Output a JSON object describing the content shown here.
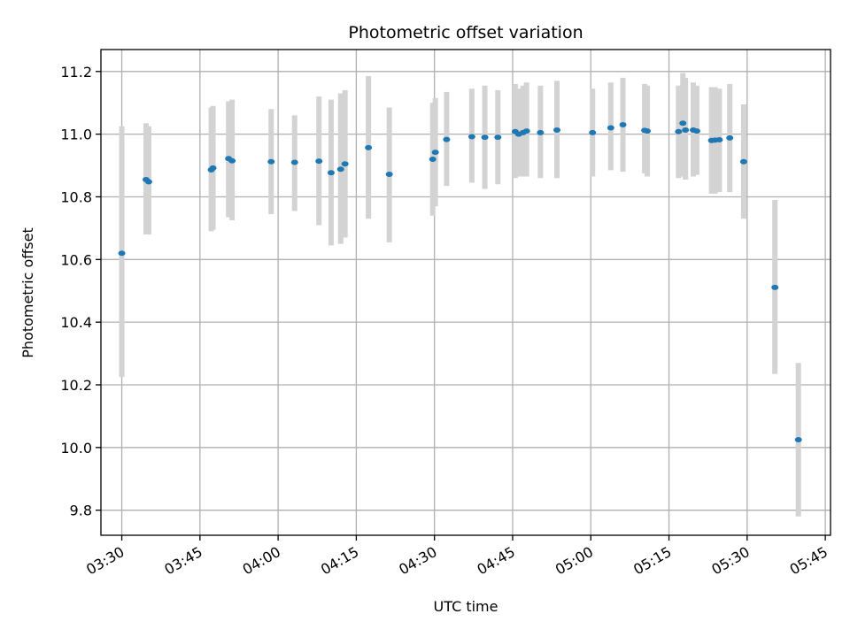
{
  "chart_data": {
    "type": "scatter",
    "title": "Photometric offset variation",
    "xlabel": "UTC time",
    "ylabel": "Photometric offset",
    "xlim": [
      "03:26",
      "05:46"
    ],
    "ylim": [
      9.72,
      11.27
    ],
    "x_ticks": [
      "03:30",
      "03:45",
      "04:00",
      "04:15",
      "04:30",
      "04:45",
      "05:00",
      "05:15",
      "05:30",
      "05:45"
    ],
    "y_ticks": [
      "9.8",
      "10.0",
      "10.2",
      "10.4",
      "10.6",
      "10.8",
      "11.0",
      "11.2"
    ],
    "grid": true,
    "colors": {
      "point": "#1f77b4",
      "errorbar": "#d3d3d3",
      "grid": "#b0b0b0"
    },
    "series": [
      {
        "x": [
          "03:30:00",
          "03:34:40",
          "03:35:10",
          "03:47:10",
          "03:47:30",
          "03:50:30",
          "03:51:10",
          "03:58:40",
          "04:03:10",
          "04:07:50",
          "04:10:10",
          "04:12:00",
          "04:12:50",
          "04:17:20",
          "04:21:20",
          "04:29:40",
          "04:30:10",
          "04:32:20",
          "04:37:10",
          "04:39:40",
          "04:42:10",
          "04:45:30",
          "04:46:10",
          "04:47:00",
          "04:47:40",
          "04:50:20",
          "04:53:30",
          "05:00:20",
          "05:03:50",
          "05:06:10",
          "05:10:20",
          "05:10:50",
          "05:16:50",
          "05:17:40",
          "05:18:10",
          "05:19:40",
          "05:20:20",
          "05:23:10",
          "05:23:50",
          "05:24:40",
          "05:26:40",
          "05:29:20",
          "05:35:20",
          "05:39:50"
        ],
        "y": [
          10.62,
          10.855,
          10.848,
          10.886,
          10.892,
          10.922,
          10.915,
          10.912,
          10.91,
          10.914,
          10.877,
          10.888,
          10.905,
          10.957,
          10.872,
          10.92,
          10.942,
          10.983,
          10.992,
          10.99,
          10.99,
          11.008,
          11.0,
          11.005,
          11.01,
          11.005,
          11.013,
          11.005,
          11.02,
          11.03,
          11.012,
          11.01,
          11.008,
          11.035,
          11.013,
          11.013,
          11.01,
          10.98,
          10.981,
          10.982,
          10.988,
          10.912,
          10.511,
          10.025
        ],
        "err_low": [
          10.225,
          10.68,
          10.68,
          10.69,
          10.695,
          10.735,
          10.725,
          10.745,
          10.755,
          10.71,
          10.645,
          10.65,
          10.67,
          10.73,
          10.655,
          10.74,
          10.77,
          10.835,
          10.845,
          10.825,
          10.84,
          10.86,
          10.865,
          10.865,
          10.865,
          10.86,
          10.86,
          10.865,
          10.885,
          10.88,
          10.875,
          10.865,
          10.86,
          10.865,
          10.855,
          10.865,
          10.87,
          10.81,
          10.81,
          10.815,
          10.815,
          10.73,
          10.235,
          9.78
        ],
        "err_high": [
          11.025,
          11.035,
          11.025,
          11.085,
          11.09,
          11.105,
          11.11,
          11.08,
          11.06,
          11.12,
          11.11,
          11.13,
          11.14,
          11.185,
          11.085,
          11.1,
          11.115,
          11.135,
          11.145,
          11.155,
          11.14,
          11.16,
          11.145,
          11.155,
          11.165,
          11.155,
          11.17,
          11.145,
          11.165,
          11.18,
          11.16,
          11.155,
          11.155,
          11.195,
          11.18,
          11.165,
          11.155,
          11.15,
          11.15,
          11.145,
          11.16,
          11.095,
          10.79,
          10.27
        ]
      }
    ]
  }
}
